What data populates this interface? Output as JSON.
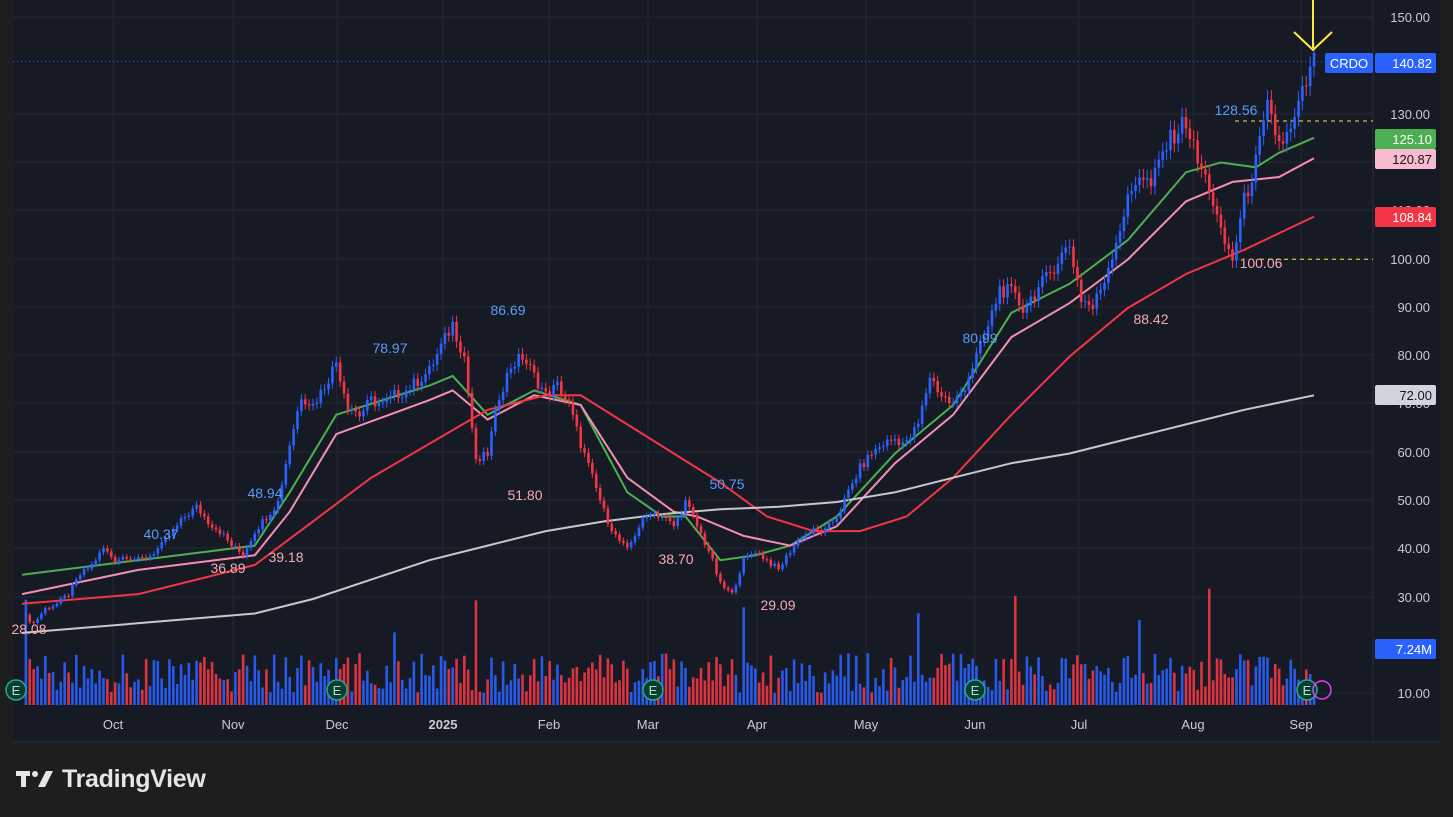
{
  "brand": {
    "name": "TradingView",
    "icon": "tradingview-logo-icon"
  },
  "colors": {
    "background": "#161a25",
    "frame": "#1e1e1e",
    "grid": "#242833",
    "up": "#2962ff",
    "down": "#f23645",
    "ma_fast": "#4caf50",
    "ma_mid": "#f48fb1",
    "ma_slow": "#f23645",
    "ma_long": "#c8c8c8",
    "annotation_arrow": "#ffeb3b"
  },
  "chart_data": {
    "type": "candlestick",
    "ticker": "CRDO",
    "last_price": "140.82",
    "y_axis": {
      "ticks": [
        "150.00",
        "130.00",
        "120.00",
        "110.00",
        "100.00",
        "90.00",
        "80.00",
        "70.00",
        "60.00",
        "50.00",
        "40.00",
        "30.00",
        "10.00"
      ],
      "range": [
        13,
        155
      ]
    },
    "x_axis": {
      "ticks": [
        "Oct",
        "Nov",
        "Dec",
        "2025",
        "Feb",
        "Mar",
        "Apr",
        "May",
        "Jun",
        "Jul",
        "Aug",
        "Sep"
      ]
    },
    "price_labels": [
      {
        "text": "140.82",
        "value": 140.82,
        "color": "#2962ff"
      },
      {
        "text": "125.10",
        "value": 125.1,
        "color": "#4caf50"
      },
      {
        "text": "120.87",
        "value": 120.87,
        "color": "#f8bbd0"
      },
      {
        "text": "108.84",
        "value": 108.84,
        "color": "#f23645"
      },
      {
        "text": "72.00",
        "value": 72.0,
        "color": "#d1d4dc"
      },
      {
        "text": "7.24M",
        "value": null,
        "color": "#2962ff"
      }
    ],
    "annotations": [
      {
        "text": "40.37",
        "date": "Oct",
        "value": 40.37,
        "kind": "high"
      },
      {
        "text": "48.94",
        "date": "Nov",
        "value": 48.94,
        "kind": "high"
      },
      {
        "text": "78.97",
        "date": "Dec",
        "value": 78.97,
        "kind": "high"
      },
      {
        "text": "86.69",
        "date": "2025",
        "value": 86.69,
        "kind": "high"
      },
      {
        "text": "50.75",
        "date": "Mar",
        "value": 50.75,
        "kind": "high"
      },
      {
        "text": "80.99",
        "date": "Jun",
        "value": 80.99,
        "kind": "high"
      },
      {
        "text": "128.56",
        "date": "Aug",
        "value": 128.56,
        "kind": "high"
      },
      {
        "text": "36.89",
        "date": "Nov",
        "value": 36.89,
        "kind": "low"
      },
      {
        "text": "39.18",
        "date": "Nov",
        "value": 39.18,
        "kind": "low"
      },
      {
        "text": "51.80",
        "date": "2025",
        "value": 51.8,
        "kind": "low"
      },
      {
        "text": "38.70",
        "date": "Mar",
        "value": 38.7,
        "kind": "low"
      },
      {
        "text": "29.09",
        "date": "Apr",
        "value": 29.09,
        "kind": "low"
      },
      {
        "text": "88.42",
        "date": "Jul",
        "value": 88.42,
        "kind": "low"
      },
      {
        "text": "100.06",
        "date": "Aug",
        "value": 100.06,
        "kind": "low"
      },
      {
        "text": "28.08",
        "date": "Sep",
        "value": 28.08,
        "kind": "low"
      }
    ],
    "earnings_markers": [
      "Sep",
      "Dec",
      "Mar",
      "Jun",
      "Sep"
    ],
    "earnings_label": "E",
    "price_path": [
      [
        0,
        27
      ],
      [
        1,
        25
      ],
      [
        2,
        28
      ],
      [
        3,
        29
      ],
      [
        4,
        31
      ],
      [
        5,
        35
      ],
      [
        6,
        37
      ],
      [
        7,
        40.37
      ],
      [
        8,
        38
      ],
      [
        9,
        39
      ],
      [
        10,
        38
      ],
      [
        11,
        39
      ],
      [
        12,
        41
      ],
      [
        13,
        44
      ],
      [
        14,
        47
      ],
      [
        15,
        48.94
      ],
      [
        16,
        46
      ],
      [
        17,
        44
      ],
      [
        18,
        41
      ],
      [
        19,
        39.18
      ],
      [
        20,
        44
      ],
      [
        21,
        47
      ],
      [
        22,
        50
      ],
      [
        23,
        62
      ],
      [
        24,
        72
      ],
      [
        25,
        70
      ],
      [
        26,
        74
      ],
      [
        27,
        78.97
      ],
      [
        28,
        70
      ],
      [
        29,
        68
      ],
      [
        30,
        71
      ],
      [
        31,
        70
      ],
      [
        32,
        72
      ],
      [
        33,
        73
      ],
      [
        34,
        75
      ],
      [
        35,
        77
      ],
      [
        36,
        82
      ],
      [
        37,
        86.69
      ],
      [
        38,
        80
      ],
      [
        39,
        58
      ],
      [
        40,
        60
      ],
      [
        41,
        72
      ],
      [
        42,
        78
      ],
      [
        43,
        80
      ],
      [
        44,
        76
      ],
      [
        45,
        72
      ],
      [
        46,
        74
      ],
      [
        47,
        70
      ],
      [
        48,
        62
      ],
      [
        49,
        55
      ],
      [
        50,
        48
      ],
      [
        51,
        43
      ],
      [
        52,
        40
      ],
      [
        53,
        45
      ],
      [
        54,
        48
      ],
      [
        55,
        47
      ],
      [
        56,
        45
      ],
      [
        57,
        50
      ],
      [
        58,
        45
      ],
      [
        59,
        40
      ],
      [
        60,
        33
      ],
      [
        61,
        31
      ],
      [
        62,
        38
      ],
      [
        63,
        40
      ],
      [
        64,
        38
      ],
      [
        65,
        36
      ],
      [
        66,
        40
      ],
      [
        67,
        43
      ],
      [
        68,
        44
      ],
      [
        69,
        44
      ],
      [
        70,
        47
      ],
      [
        71,
        52
      ],
      [
        72,
        57
      ],
      [
        73,
        60
      ],
      [
        74,
        62
      ],
      [
        75,
        63
      ],
      [
        76,
        62
      ],
      [
        77,
        66
      ],
      [
        78,
        76
      ],
      [
        79,
        72
      ],
      [
        80,
        70
      ],
      [
        81,
        74
      ],
      [
        82,
        80
      ],
      [
        83,
        86
      ],
      [
        84,
        94
      ],
      [
        85,
        93
      ],
      [
        86,
        90
      ],
      [
        87,
        93
      ],
      [
        88,
        96
      ],
      [
        89,
        100
      ],
      [
        90,
        103
      ],
      [
        91,
        92
      ],
      [
        92,
        90
      ],
      [
        93,
        96
      ],
      [
        94,
        104
      ],
      [
        95,
        112
      ],
      [
        96,
        118
      ],
      [
        97,
        115
      ],
      [
        98,
        122
      ],
      [
        99,
        126
      ],
      [
        100,
        128.56
      ],
      [
        101,
        120
      ],
      [
        102,
        115
      ],
      [
        103,
        105
      ],
      [
        104,
        100.06
      ],
      [
        105,
        112
      ],
      [
        106,
        120
      ],
      [
        107,
        131
      ],
      [
        108,
        124
      ],
      [
        109,
        126
      ],
      [
        110,
        134
      ],
      [
        111,
        140.82
      ]
    ],
    "moving_averages": [
      {
        "color": "#4caf50",
        "path": [
          [
            0,
            35
          ],
          [
            10,
            38
          ],
          [
            20,
            41
          ],
          [
            23,
            52
          ],
          [
            27,
            68
          ],
          [
            35,
            74
          ],
          [
            37,
            76
          ],
          [
            40,
            68
          ],
          [
            44,
            73
          ],
          [
            48,
            70
          ],
          [
            52,
            52
          ],
          [
            55,
            47
          ],
          [
            57,
            47
          ],
          [
            60,
            38
          ],
          [
            63,
            39
          ],
          [
            66,
            41
          ],
          [
            70,
            47
          ],
          [
            75,
            60
          ],
          [
            80,
            70
          ],
          [
            85,
            89
          ],
          [
            90,
            95
          ],
          [
            95,
            104
          ],
          [
            100,
            118
          ],
          [
            103,
            120
          ],
          [
            106,
            119
          ],
          [
            108,
            122
          ],
          [
            111,
            125.1
          ]
        ]
      },
      {
        "color": "#f48fb1",
        "path": [
          [
            0,
            31
          ],
          [
            10,
            36
          ],
          [
            20,
            39
          ],
          [
            23,
            48
          ],
          [
            27,
            64
          ],
          [
            35,
            71
          ],
          [
            37,
            73
          ],
          [
            40,
            67
          ],
          [
            44,
            72
          ],
          [
            48,
            70
          ],
          [
            52,
            55
          ],
          [
            56,
            48
          ],
          [
            58,
            47
          ],
          [
            62,
            43
          ],
          [
            66,
            41
          ],
          [
            70,
            45
          ],
          [
            75,
            58
          ],
          [
            80,
            68
          ],
          [
            85,
            84
          ],
          [
            90,
            91
          ],
          [
            95,
            100
          ],
          [
            100,
            112
          ],
          [
            104,
            116
          ],
          [
            108,
            117
          ],
          [
            111,
            120.87
          ]
        ]
      },
      {
        "color": "#f23645",
        "path": [
          [
            0,
            29
          ],
          [
            10,
            31
          ],
          [
            15,
            34
          ],
          [
            20,
            37
          ],
          [
            25,
            46
          ],
          [
            30,
            55
          ],
          [
            35,
            62
          ],
          [
            40,
            69
          ],
          [
            45,
            72
          ],
          [
            48,
            72
          ],
          [
            52,
            66
          ],
          [
            56,
            60
          ],
          [
            60,
            54
          ],
          [
            64,
            47
          ],
          [
            68,
            44
          ],
          [
            72,
            44
          ],
          [
            76,
            47
          ],
          [
            80,
            55
          ],
          [
            85,
            68
          ],
          [
            90,
            80
          ],
          [
            95,
            90
          ],
          [
            100,
            97
          ],
          [
            105,
            102
          ],
          [
            111,
            108.84
          ]
        ]
      },
      {
        "color": "#c8c8c8",
        "path": [
          [
            0,
            23
          ],
          [
            20,
            27
          ],
          [
            25,
            30
          ],
          [
            30,
            34
          ],
          [
            35,
            38
          ],
          [
            40,
            41
          ],
          [
            45,
            44
          ],
          [
            50,
            46
          ],
          [
            55,
            47.5
          ],
          [
            60,
            48.5
          ],
          [
            65,
            49
          ],
          [
            70,
            50
          ],
          [
            75,
            52
          ],
          [
            80,
            55
          ],
          [
            85,
            58
          ],
          [
            90,
            60
          ],
          [
            95,
            63
          ],
          [
            100,
            66
          ],
          [
            105,
            69
          ],
          [
            111,
            72
          ]
        ]
      }
    ]
  }
}
